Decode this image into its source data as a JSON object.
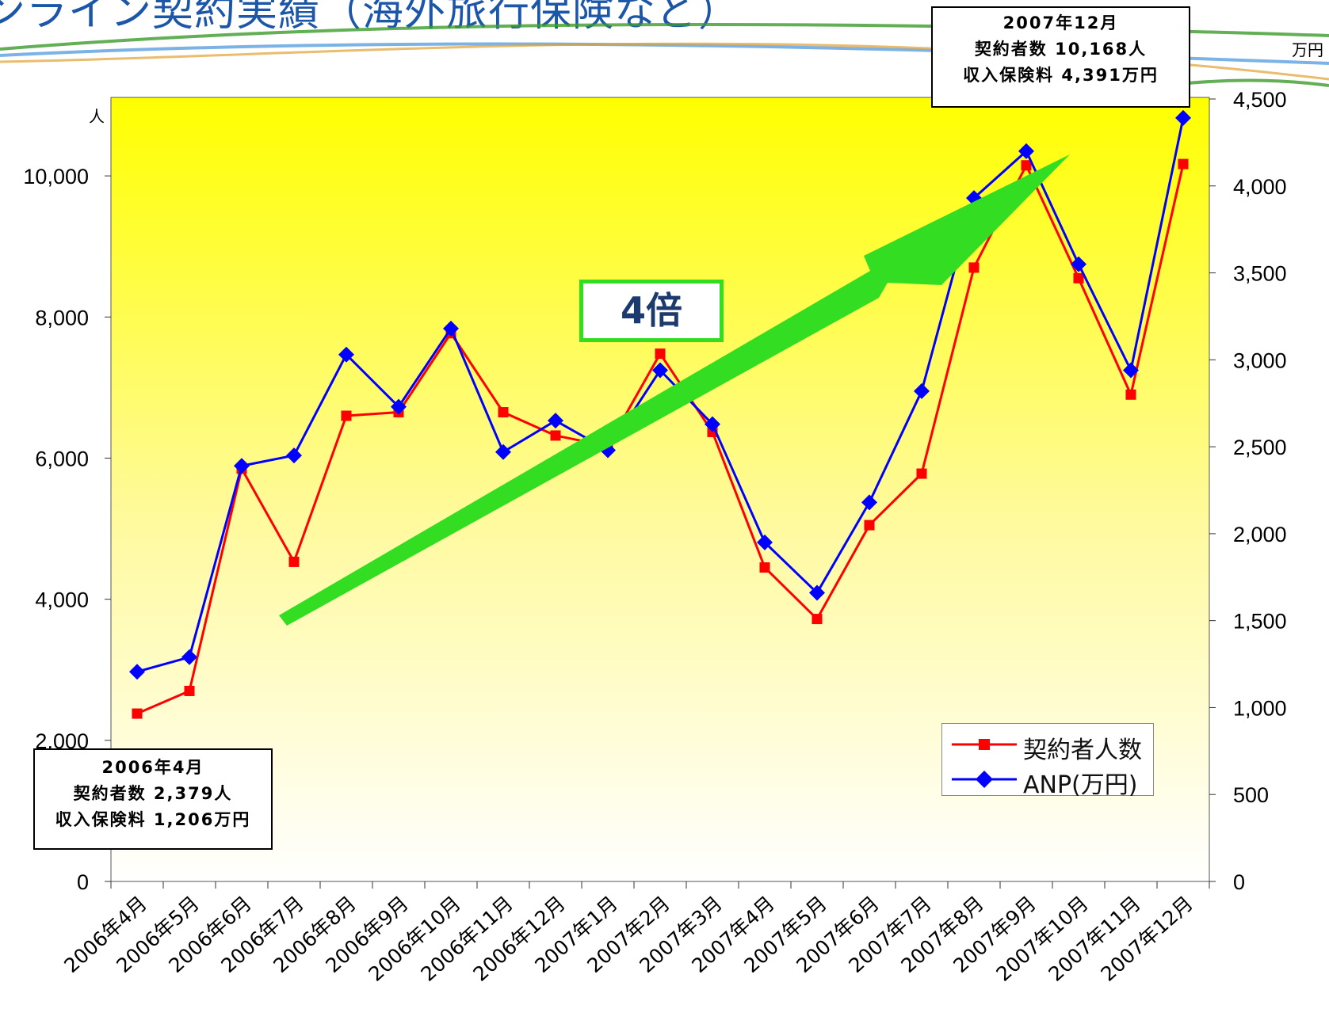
{
  "title": "ンライン契約実績（海外旅行保険など）",
  "chart_data": {
    "type": "line",
    "categories": [
      "2006年4月",
      "2006年5月",
      "2006年6月",
      "2006年7月",
      "2006年8月",
      "2006年9月",
      "2006年10月",
      "2006年11月",
      "2006年12月",
      "2007年1月",
      "2007年2月",
      "2007年3月",
      "2007年4月",
      "2007年5月",
      "2007年6月",
      "2007年7月",
      "2007年8月",
      "2007年9月",
      "2007年10月",
      "2007年11月",
      "2007年12月"
    ],
    "series": [
      {
        "name": "契約者人数",
        "axis": "left",
        "color": "#ff0000",
        "marker": "square",
        "values": [
          2379,
          2700,
          5850,
          4530,
          6600,
          6650,
          7770,
          6650,
          6320,
          6170,
          7480,
          6370,
          4450,
          3720,
          5050,
          5780,
          8700,
          10150,
          8550,
          6900,
          10168
        ]
      },
      {
        "name": "ANP(万円)",
        "axis": "right",
        "color": "#0000ff",
        "marker": "diamond",
        "values": [
          1206,
          1290,
          2390,
          2450,
          3030,
          2730,
          3180,
          2470,
          2650,
          2480,
          2940,
          2630,
          1950,
          1660,
          2180,
          2820,
          3930,
          4200,
          3550,
          2940,
          4391
        ]
      }
    ],
    "y_left": {
      "unit": "人",
      "ylim": [
        0,
        11000
      ],
      "ticks": [
        0,
        2000,
        4000,
        6000,
        8000,
        10000
      ],
      "tick_labels": [
        "0",
        "2,000",
        "4,000",
        "6,000",
        "8,000",
        "10,000"
      ]
    },
    "y_right": {
      "unit": "万円",
      "ylim": [
        0,
        4500
      ],
      "ticks": [
        0,
        500,
        1000,
        1500,
        2000,
        2500,
        3000,
        3500,
        4000,
        4500
      ],
      "tick_labels": [
        "0",
        "500",
        "1,000",
        "1,500",
        "2,000",
        "2,500",
        "3,000",
        "3,500",
        "4,000",
        "4,500"
      ]
    },
    "legend_position": "bottom-right",
    "grid": false,
    "background": "gradient yellow to white",
    "colors": {
      "plot_top": "#ffff00",
      "plot_bottom": "#ffffff",
      "arrow": "#33dd22"
    }
  },
  "badge": {
    "label": "4倍"
  },
  "callout_end": {
    "line1": "2007年12月",
    "line2": "契約者数 10,168人",
    "line3": "収入保険料 4,391万円"
  },
  "callout_start": {
    "line1": "2006年4月",
    "line2": "契約者数 2,379人",
    "line3": "収入保険料 1,206万円"
  }
}
